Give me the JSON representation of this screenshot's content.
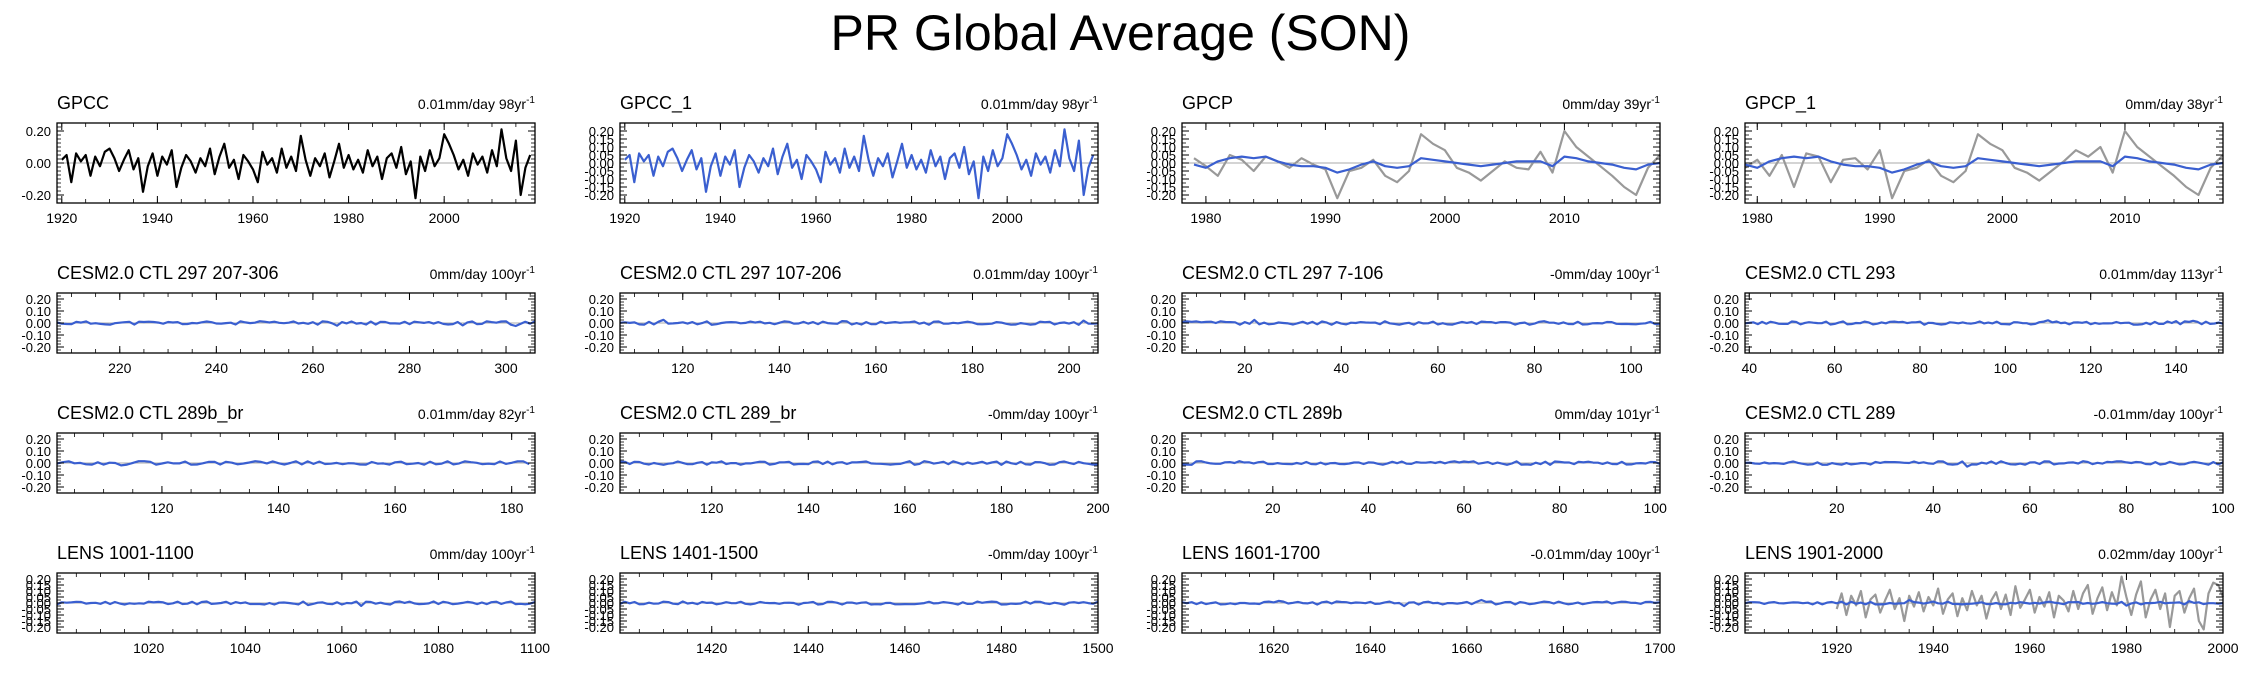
{
  "title": "PR Global Average (SON)",
  "colors": {
    "obs": "#000000",
    "model": "#3a5fd0",
    "gray": "#999999",
    "zero": "#aaaaaa"
  },
  "chart_data": [
    {
      "type": "line",
      "title": "GPCC",
      "trend": "0.01mm/day 98yr",
      "trend_unit": "-1",
      "xlim": [
        1919,
        2019
      ],
      "xticks": [
        1920,
        1940,
        1960,
        1980,
        2000
      ],
      "ylim": [
        -0.25,
        0.25
      ],
      "yticks": [
        "0.20",
        "0.00",
        "-0.20"
      ],
      "series": [
        {
          "color": "#000000",
          "x0": 1920,
          "values": [
            0.02,
            0.05,
            -0.12,
            0.06,
            0.01,
            0.05,
            -0.08,
            0.04,
            -0.02,
            0.07,
            0.09,
            0.03,
            -0.05,
            0.02,
            0.08,
            -0.04,
            0.03,
            -0.18,
            -0.02,
            0.06,
            -0.08,
            0.04,
            -0.01,
            0.08,
            -0.15,
            -0.03,
            0.05,
            0.01,
            -0.06,
            0.03,
            -0.02,
            0.09,
            -0.07,
            0.04,
            0.12,
            -0.03,
            0.02,
            -0.1,
            0.05,
            0.01,
            -0.04,
            -0.12,
            0.07,
            -0.01,
            0.03,
            -0.06,
            0.09,
            -0.03,
            0.04,
            -0.05,
            0.17,
            0.02,
            -0.08,
            0.03,
            -0.02,
            0.06,
            -0.09,
            0.01,
            0.12,
            -0.03,
            0.05,
            -0.04,
            0.02,
            -0.06,
            0.08,
            -0.02,
            0.04,
            -0.1,
            0.03,
            0.06,
            -0.03,
            0.1,
            -0.07,
            0.01,
            -0.22,
            0.04,
            -0.05,
            0.08,
            -0.02,
            0.03,
            0.18,
            0.12,
            0.05,
            -0.04,
            0.02,
            -0.08,
            0.06,
            -0.01,
            0.04,
            -0.06,
            0.08,
            -0.02,
            0.21,
            0.03,
            -0.05,
            0.14,
            -0.2,
            -0.03,
            0.05
          ]
        }
      ]
    },
    {
      "type": "line",
      "title": "GPCC_1",
      "trend": "0.01mm/day 98yr",
      "trend_unit": "-1",
      "xlim": [
        1919,
        2019
      ],
      "xticks": [
        1920,
        1940,
        1960,
        1980,
        2000
      ],
      "ylim": [
        -0.25,
        0.25
      ],
      "yticks": [
        "0.20",
        "0.15",
        "0.10",
        "0.05",
        "0.00",
        "-0.05",
        "-0.10",
        "-0.15",
        "-0.20"
      ],
      "series": [
        {
          "color": "#3a5fd0",
          "x0": 1920,
          "values": [
            0.02,
            0.05,
            -0.12,
            0.06,
            0.01,
            0.05,
            -0.08,
            0.04,
            -0.02,
            0.07,
            0.09,
            0.03,
            -0.05,
            0.02,
            0.08,
            -0.04,
            0.03,
            -0.18,
            -0.02,
            0.06,
            -0.08,
            0.04,
            -0.01,
            0.08,
            -0.15,
            -0.03,
            0.05,
            0.01,
            -0.06,
            0.03,
            -0.02,
            0.09,
            -0.07,
            0.04,
            0.12,
            -0.03,
            0.02,
            -0.1,
            0.05,
            0.01,
            -0.04,
            -0.12,
            0.07,
            -0.01,
            0.03,
            -0.06,
            0.09,
            -0.03,
            0.04,
            -0.05,
            0.17,
            0.02,
            -0.08,
            0.03,
            -0.02,
            0.06,
            -0.09,
            0.01,
            0.12,
            -0.03,
            0.05,
            -0.04,
            0.02,
            -0.06,
            0.08,
            -0.02,
            0.04,
            -0.1,
            0.03,
            0.06,
            -0.03,
            0.1,
            -0.07,
            0.01,
            -0.22,
            0.04,
            -0.05,
            0.08,
            -0.02,
            0.03,
            0.18,
            0.12,
            0.05,
            -0.04,
            0.02,
            -0.08,
            0.06,
            -0.01,
            0.04,
            -0.06,
            0.08,
            -0.02,
            0.21,
            0.03,
            -0.05,
            0.14,
            -0.2,
            -0.03,
            0.05
          ]
        }
      ]
    },
    {
      "type": "line",
      "title": "GPCP",
      "trend": "0mm/day 39yr",
      "trend_unit": "-1",
      "xlim": [
        1978,
        2018
      ],
      "xticks": [
        1980,
        1990,
        2000,
        2010
      ],
      "ylim": [
        -0.25,
        0.25
      ],
      "yticks": [
        "0.20",
        "0.15",
        "0.10",
        "0.05",
        "0.00",
        "-0.05",
        "-0.10",
        "-0.15",
        "-0.20"
      ],
      "series": [
        {
          "color": "#999999",
          "x0": 1979,
          "values": [
            0.03,
            -0.02,
            -0.08,
            0.05,
            0.02,
            -0.05,
            0.04,
            0.01,
            -0.03,
            0.03,
            -0.01,
            -0.04,
            -0.22,
            -0.05,
            -0.03,
            0.02,
            -0.08,
            -0.12,
            -0.05,
            0.18,
            0.12,
            0.08,
            -0.03,
            -0.06,
            -0.11,
            -0.05,
            0.01,
            -0.03,
            -0.04,
            0.07,
            -0.06,
            0.2,
            0.1,
            0.04,
            -0.02,
            -0.08,
            -0.15,
            -0.2,
            -0.03,
            0.05
          ]
        },
        {
          "color": "#3a5fd0",
          "x0": 1979,
          "values": [
            -0.01,
            -0.03,
            0.01,
            0.03,
            0.04,
            0.03,
            0.04,
            0.01,
            -0.01,
            -0.02,
            -0.02,
            -0.03,
            -0.06,
            -0.04,
            -0.01,
            0.01,
            -0.02,
            -0.03,
            -0.02,
            0.03,
            0.02,
            0.01,
            0.0,
            -0.01,
            -0.02,
            -0.01,
            0.0,
            0.01,
            0.01,
            0.01,
            -0.02,
            0.04,
            0.03,
            0.01,
            0.0,
            -0.01,
            -0.03,
            -0.04,
            -0.01,
            0.0
          ]
        }
      ]
    },
    {
      "type": "line",
      "title": "GPCP_1",
      "trend": "0mm/day 38yr",
      "trend_unit": "-1",
      "xlim": [
        1979,
        2018
      ],
      "xticks": [
        1980,
        1990,
        2000,
        2010
      ],
      "ylim": [
        -0.25,
        0.25
      ],
      "yticks": [
        "0.20",
        "0.15",
        "0.10",
        "0.05",
        "0.00",
        "-0.05",
        "-0.10",
        "-0.15",
        "-0.20"
      ],
      "series": [
        {
          "color": "#999999",
          "x0": 1979,
          "values": [
            -0.03,
            0.02,
            -0.08,
            0.05,
            -0.15,
            0.06,
            0.04,
            -0.12,
            0.02,
            0.03,
            -0.04,
            0.08,
            -0.22,
            -0.05,
            -0.03,
            0.02,
            -0.08,
            -0.12,
            -0.05,
            0.18,
            0.12,
            0.08,
            -0.03,
            -0.06,
            -0.11,
            -0.05,
            0.01,
            0.08,
            0.04,
            0.1,
            -0.06,
            0.2,
            0.1,
            0.04,
            -0.02,
            -0.08,
            -0.15,
            -0.2,
            -0.03,
            0.05
          ]
        },
        {
          "color": "#3a5fd0",
          "x0": 1979,
          "values": [
            -0.01,
            -0.03,
            0.01,
            0.03,
            0.04,
            0.03,
            0.04,
            0.01,
            -0.01,
            -0.02,
            -0.02,
            -0.03,
            -0.06,
            -0.04,
            -0.01,
            0.01,
            -0.02,
            -0.03,
            -0.02,
            0.03,
            0.02,
            0.01,
            0.0,
            -0.01,
            -0.02,
            -0.01,
            0.0,
            0.01,
            0.01,
            0.01,
            -0.02,
            0.04,
            0.03,
            0.01,
            0.0,
            -0.01,
            -0.03,
            -0.04,
            -0.01,
            0.0
          ]
        }
      ]
    },
    {
      "type": "line",
      "title": "CESM2.0 CTL 297 207-306",
      "trend": "0mm/day 100yr",
      "trend_unit": "-1",
      "xlim": [
        207,
        306
      ],
      "xticks": [
        220,
        240,
        260,
        280,
        300
      ],
      "ylim": [
        -0.25,
        0.25
      ],
      "yticks": [
        "0.20",
        "0.10",
        "0.00",
        "-0.10",
        "-0.20"
      ],
      "noise": {
        "x0": 207,
        "n": 100,
        "amp": 0.015,
        "seed": 11,
        "color": "#3a5fd0"
      }
    },
    {
      "type": "line",
      "title": "CESM2.0 CTL 297 107-206",
      "trend": "0.01mm/day 100yr",
      "trend_unit": "-1",
      "xlim": [
        107,
        206
      ],
      "xticks": [
        120,
        140,
        160,
        180,
        200
      ],
      "ylim": [
        -0.25,
        0.25
      ],
      "yticks": [
        "0.20",
        "0.10",
        "0.00",
        "-0.10",
        "-0.20"
      ],
      "noise": {
        "x0": 107,
        "n": 100,
        "amp": 0.015,
        "seed": 23,
        "color": "#3a5fd0"
      }
    },
    {
      "type": "line",
      "title": "CESM2.0 CTL 297 7-106",
      "trend": "-0mm/day 100yr",
      "trend_unit": "-1",
      "xlim": [
        7,
        106
      ],
      "xticks": [
        20,
        40,
        60,
        80,
        100
      ],
      "ylim": [
        -0.25,
        0.25
      ],
      "yticks": [
        "0.20",
        "0.10",
        "0.00",
        "-0.10",
        "-0.20"
      ],
      "noise": {
        "x0": 7,
        "n": 100,
        "amp": 0.015,
        "seed": 37,
        "color": "#3a5fd0"
      }
    },
    {
      "type": "line",
      "title": "CESM2.0 CTL 293",
      "trend": "0.01mm/day 113yr",
      "trend_unit": "-1",
      "xlim": [
        39,
        151
      ],
      "xticks": [
        40,
        60,
        80,
        100,
        120,
        140
      ],
      "ylim": [
        -0.25,
        0.25
      ],
      "yticks": [
        "0.20",
        "0.10",
        "0.00",
        "-0.10",
        "-0.20"
      ],
      "noise": {
        "x0": 39,
        "n": 113,
        "amp": 0.015,
        "seed": 41,
        "color": "#3a5fd0"
      }
    },
    {
      "type": "line",
      "title": "CESM2.0 CTL 289b_br",
      "trend": "0.01mm/day 82yr",
      "trend_unit": "-1",
      "xlim": [
        102,
        184
      ],
      "xticks": [
        120,
        140,
        160,
        180
      ],
      "ylim": [
        -0.25,
        0.25
      ],
      "yticks": [
        "0.20",
        "0.10",
        "0.00",
        "-0.10",
        "-0.20"
      ],
      "noise": {
        "x0": 102,
        "n": 82,
        "amp": 0.015,
        "seed": 53,
        "color": "#3a5fd0"
      }
    },
    {
      "type": "line",
      "title": "CESM2.0 CTL 289_br",
      "trend": "-0mm/day 100yr",
      "trend_unit": "-1",
      "xlim": [
        101,
        200
      ],
      "xticks": [
        120,
        140,
        160,
        180,
        200
      ],
      "ylim": [
        -0.25,
        0.25
      ],
      "yticks": [
        "0.20",
        "0.10",
        "0.00",
        "-0.10",
        "-0.20"
      ],
      "noise": {
        "x0": 101,
        "n": 100,
        "amp": 0.015,
        "seed": 67,
        "color": "#3a5fd0"
      }
    },
    {
      "type": "line",
      "title": "CESM2.0 CTL 289b",
      "trend": "0mm/day 101yr",
      "trend_unit": "-1",
      "xlim": [
        1,
        101
      ],
      "xticks": [
        20,
        40,
        60,
        80,
        100
      ],
      "ylim": [
        -0.25,
        0.25
      ],
      "yticks": [
        "0.20",
        "0.10",
        "0.00",
        "-0.10",
        "-0.20"
      ],
      "noise": {
        "x0": 1,
        "n": 101,
        "amp": 0.015,
        "seed": 71,
        "color": "#3a5fd0"
      }
    },
    {
      "type": "line",
      "title": "CESM2.0 CTL 289",
      "trend": "-0.01mm/day 100yr",
      "trend_unit": "-1",
      "xlim": [
        1,
        100
      ],
      "xticks": [
        20,
        40,
        60,
        80,
        100
      ],
      "ylim": [
        -0.25,
        0.25
      ],
      "yticks": [
        "0.20",
        "0.10",
        "0.00",
        "-0.10",
        "-0.20"
      ],
      "noise": {
        "x0": 1,
        "n": 100,
        "amp": 0.015,
        "seed": 83,
        "color": "#3a5fd0"
      }
    },
    {
      "type": "line",
      "title": "LENS 1001-1100",
      "trend": "0mm/day 100yr",
      "trend_unit": "-1",
      "xlim": [
        1001,
        1100
      ],
      "xticks": [
        1020,
        1040,
        1060,
        1080,
        1100
      ],
      "ylim": [
        -0.25,
        0.25
      ],
      "yticks": [
        "0.20",
        "0.15",
        "0.10",
        "0.05",
        "0.00",
        "-0.05",
        "-0.10",
        "-0.15",
        "-0.20"
      ],
      "noise": {
        "x0": 1001,
        "n": 100,
        "amp": 0.013,
        "seed": 97,
        "color": "#3a5fd0"
      }
    },
    {
      "type": "line",
      "title": "LENS 1401-1500",
      "trend": "-0mm/day 100yr",
      "trend_unit": "-1",
      "xlim": [
        1401,
        1500
      ],
      "xticks": [
        1420,
        1440,
        1460,
        1480,
        1500
      ],
      "ylim": [
        -0.25,
        0.25
      ],
      "yticks": [
        "0.20",
        "0.15",
        "0.10",
        "0.05",
        "0.00",
        "-0.05",
        "-0.10",
        "-0.15",
        "-0.20"
      ],
      "noise": {
        "x0": 1401,
        "n": 100,
        "amp": 0.013,
        "seed": 101,
        "color": "#3a5fd0"
      }
    },
    {
      "type": "line",
      "title": "LENS 1601-1700",
      "trend": "-0.01mm/day 100yr",
      "trend_unit": "-1",
      "xlim": [
        1601,
        1700
      ],
      "xticks": [
        1620,
        1640,
        1660,
        1680,
        1700
      ],
      "ylim": [
        -0.25,
        0.25
      ],
      "yticks": [
        "0.20",
        "0.15",
        "0.10",
        "0.05",
        "0.00",
        "-0.05",
        "-0.10",
        "-0.15",
        "-0.20"
      ],
      "noise": {
        "x0": 1601,
        "n": 100,
        "amp": 0.013,
        "seed": 113,
        "color": "#3a5fd0"
      }
    },
    {
      "type": "line",
      "title": "LENS 1901-2000",
      "trend": "0.02mm/day 100yr",
      "trend_unit": "-1",
      "xlim": [
        1901,
        2000
      ],
      "xticks": [
        1920,
        1940,
        1960,
        1980,
        2000
      ],
      "ylim": [
        -0.25,
        0.25
      ],
      "yticks": [
        "0.20",
        "0.15",
        "0.10",
        "0.05",
        "0.00",
        "-0.05",
        "-0.10",
        "-0.15",
        "-0.20"
      ],
      "series": [
        {
          "color": "#999999",
          "x0": 1920,
          "values": [
            -0.05,
            0.08,
            -0.1,
            0.06,
            -0.02,
            0.1,
            -0.12,
            0.03,
            0.07,
            -0.08,
            0.02,
            0.11,
            -0.05,
            0.04,
            -0.15,
            0.06,
            -0.03,
            0.09,
            -0.07,
            0.05,
            -0.02,
            0.12,
            -0.09,
            0.03,
            0.08,
            -0.11,
            0.04,
            -0.06,
            0.1,
            -0.02,
            0.06,
            -0.13,
            0.02,
            0.09,
            -0.05,
            0.07,
            -0.1,
            0.14,
            -0.04,
            0.03,
            0.11,
            -0.08,
            0.05,
            -0.03,
            0.09,
            -0.12,
            0.06,
            0.02,
            -0.07,
            0.1,
            -0.05,
            0.08,
            0.15,
            -0.09,
            0.04,
            0.13,
            -0.06,
            0.09,
            -0.02,
            0.22,
            0.05,
            -0.1,
            0.07,
            0.18,
            -0.12,
            0.03,
            0.11,
            -0.05,
            0.08,
            -0.2,
            0.06,
            0.1,
            -0.08,
            0.04,
            0.12,
            -0.15,
            -0.22,
            0.08,
            0.17,
            0.15,
            0.05
          ]
        },
        {
          "color": "#3a5fd0",
          "noise": {
            "amp": 0.012,
            "seed": 131
          }
        }
      ]
    }
  ]
}
